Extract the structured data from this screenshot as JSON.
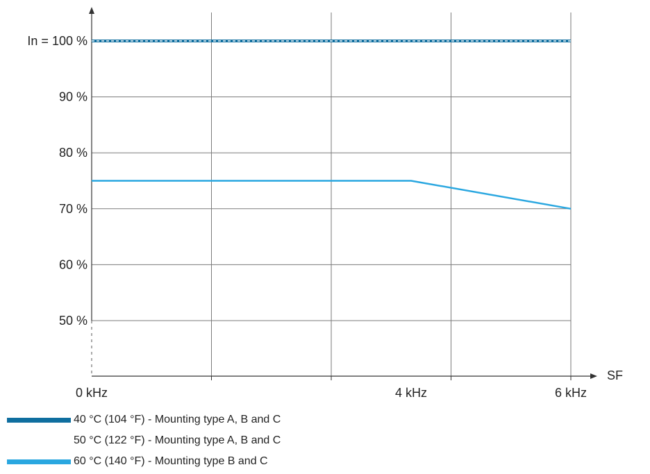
{
  "chart_data": {
    "type": "line",
    "x_ticks": [
      "0 kHz",
      "4 kHz",
      "6 kHz"
    ],
    "y_ticks": [
      "In = 100 %",
      "90 %",
      "80 %",
      "70 %",
      "60 %",
      "50 %"
    ],
    "xlabel": "SF",
    "ylabel": "",
    "xlim": [
      0,
      6
    ],
    "ylim": [
      40,
      100
    ],
    "grid": true,
    "legend_position": "bottom",
    "series": [
      {
        "name": "40 °C (104 °F) - Mounting type A, B and C",
        "color": "#0f6e9f",
        "style": "solid",
        "x": [
          0,
          6
        ],
        "y": [
          100,
          100
        ]
      },
      {
        "name": "50 °C (122 °F) - Mounting type A, B and C",
        "color": "#ffffff",
        "style": "dashed",
        "x": [
          0,
          6
        ],
        "y": [
          100,
          100
        ]
      },
      {
        "name": "60 °C (140 °F) - Mounting type B and C",
        "color": "#2aa7e0",
        "style": "solid",
        "x": [
          0,
          4,
          6
        ],
        "y": [
          75,
          75,
          70
        ]
      }
    ]
  }
}
